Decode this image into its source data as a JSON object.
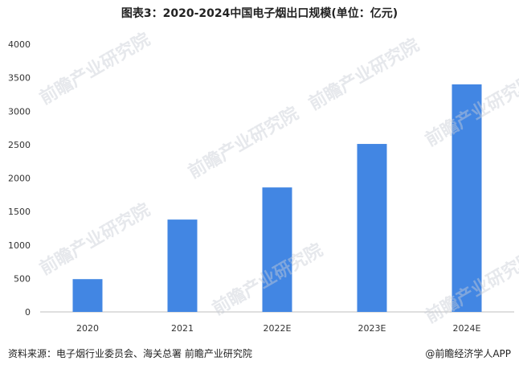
{
  "title": "图表3：2020-2024中国电子烟出口规模(单位：亿元)",
  "source": "资料来源：电子烟行业委员会、海关总署 前瞻产业研究院",
  "brand": "@前瞻经济学人APP",
  "watermark_text": "前瞻产业研究院",
  "chart_data": {
    "type": "bar",
    "title": "图表3：2020-2024中国电子烟出口规模(单位：亿元)",
    "categories": [
      "2020",
      "2021",
      "2022E",
      "2023E",
      "2024E"
    ],
    "values": [
      490,
      1380,
      1860,
      2510,
      3400
    ],
    "ylim": [
      0,
      4000
    ],
    "yticks": [
      "0",
      "500",
      "1000",
      "1500",
      "2000",
      "2500",
      "3000",
      "3500",
      "4000"
    ],
    "xlabel": "",
    "ylabel": "",
    "grid": false,
    "bar_color": "#4286e3"
  }
}
